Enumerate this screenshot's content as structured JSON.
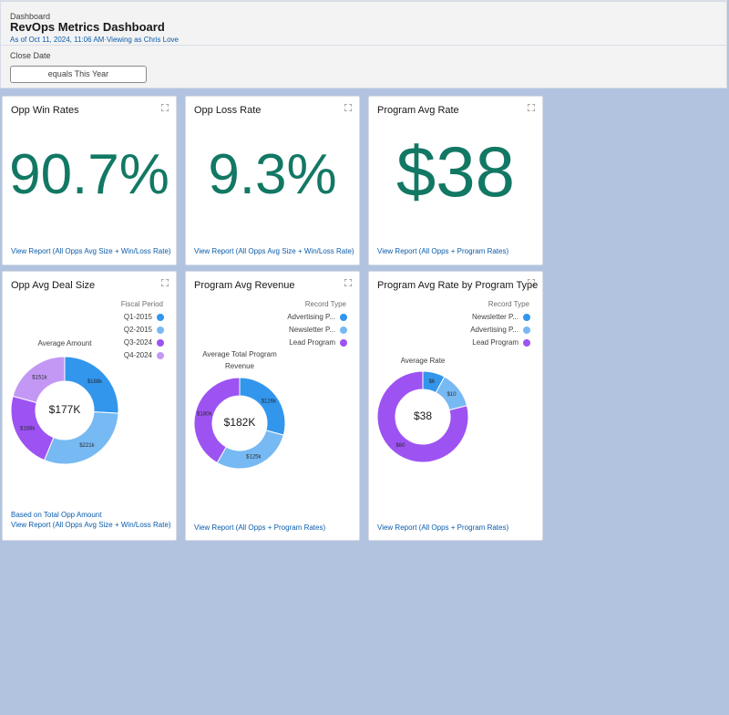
{
  "header": {
    "breadcrumb": "Dashboard",
    "title": "RevOps Metrics Dashboard",
    "meta": "As of Oct 11, 2024, 11:06 AM·Viewing as Chris Love"
  },
  "filter": {
    "label": "Close Date",
    "value": "equals This Year"
  },
  "metrics": [
    {
      "title": "Opp Win Rates",
      "value": "90.7%",
      "link": "View Report (All Opps Avg Size + Win/Loss Rate)"
    },
    {
      "title": "Opp Loss Rate",
      "value": "9.3%",
      "link": "View Report (All Opps Avg Size + Win/Loss Rate)"
    },
    {
      "title": "Program Avg Rate",
      "value": "$38",
      "link": "View Report (All Opps + Program Rates)"
    }
  ],
  "charts": [
    {
      "type": "donut",
      "title": "Opp Avg Deal Size",
      "legend_title": "Fiscal Period",
      "chart_title": "Average Amount",
      "center_label": "$177K",
      "categories": [
        "Q1-2015",
        "Q2-2015",
        "Q3-2024",
        "Q4-2024"
      ],
      "values": [
        188000,
        221000,
        168000,
        151000
      ],
      "value_labels": [
        "$188k",
        "$221k",
        "$168k",
        "$151k"
      ],
      "colors": [
        "#3296ed",
        "#77b9f2",
        "#9d53f2",
        "#c398f5"
      ],
      "footer": "Based on Total Opp Amount",
      "link": "View Report (All Opps Avg Size + Win/Loss Rate)"
    },
    {
      "type": "donut",
      "title": "Program Avg Revenue",
      "legend_title": "Record Type",
      "chart_title": "Average Total Program Revenue",
      "center_label": "$182K",
      "categories": [
        "Advertising P...",
        "Newsletter P...",
        "Lead Program"
      ],
      "values": [
        126000,
        125000,
        180000
      ],
      "value_labels": [
        "$126k",
        "$125k",
        "$180k"
      ],
      "colors": [
        "#3296ed",
        "#77b9f2",
        "#9d53f2"
      ],
      "link": "View Report (All Opps + Program Rates)"
    },
    {
      "type": "donut",
      "title": "Program Avg Rate by Program Type",
      "legend_title": "Record Type",
      "chart_title": "Average Rate",
      "center_label": "$38",
      "categories": [
        "Newsletter P...",
        "Advertising P...",
        "Lead Program"
      ],
      "values": [
        6,
        10,
        60
      ],
      "value_labels": [
        "$6",
        "$10",
        "$60"
      ],
      "colors": [
        "#3296ed",
        "#77b9f2",
        "#9d53f2"
      ],
      "link": "View Report (All Opps + Program Rates)"
    }
  ]
}
